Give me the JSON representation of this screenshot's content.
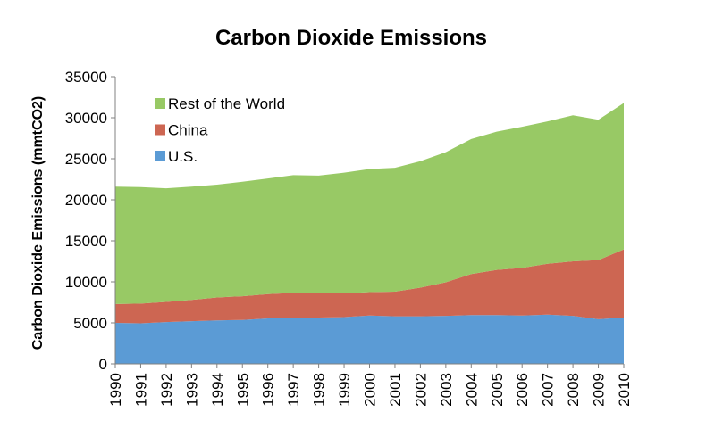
{
  "chart_data": {
    "type": "area",
    "stacked": true,
    "title": "Carbon Dioxide Emissions",
    "xlabel": "",
    "ylabel": "Carbon Dioxide Emissions (mmtCO2)",
    "ylim": [
      0,
      35000
    ],
    "yticks": [
      0,
      5000,
      10000,
      15000,
      20000,
      25000,
      30000,
      35000
    ],
    "grid": false,
    "legend_position": "top-left",
    "categories": [
      "1990",
      "1991",
      "1992",
      "1993",
      "1994",
      "1995",
      "1996",
      "1997",
      "1998",
      "1999",
      "2000",
      "2001",
      "2002",
      "2003",
      "2004",
      "2005",
      "2006",
      "2007",
      "2008",
      "2009",
      "2010"
    ],
    "series": [
      {
        "name": "U.S.",
        "color": "#5b9bd5",
        "values": [
          5000,
          4950,
          5100,
          5200,
          5300,
          5350,
          5550,
          5600,
          5650,
          5700,
          5900,
          5800,
          5800,
          5850,
          5950,
          5950,
          5900,
          6000,
          5850,
          5450,
          5650
        ]
      },
      {
        "name": "China",
        "color": "#cd6652",
        "values": [
          2300,
          2400,
          2450,
          2600,
          2800,
          2900,
          2950,
          3050,
          2950,
          2900,
          2850,
          3000,
          3500,
          4100,
          5000,
          5500,
          5800,
          6200,
          6650,
          7200,
          8300
        ]
      },
      {
        "name": "Rest of the World",
        "color": "#98c965",
        "values": [
          14300,
          14200,
          13850,
          13800,
          13750,
          13950,
          14100,
          14350,
          14350,
          14700,
          15000,
          15100,
          15400,
          15850,
          16450,
          16850,
          17200,
          17350,
          17800,
          17100,
          17850
        ]
      }
    ]
  }
}
